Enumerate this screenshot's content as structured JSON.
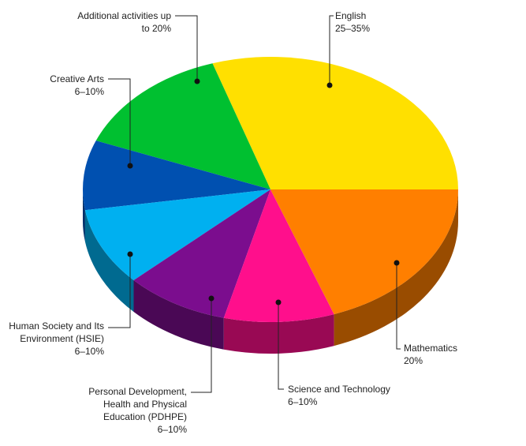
{
  "chart_data": {
    "type": "pie3d",
    "categories": [
      "English",
      "Additional activities up to 20%",
      "Creative Arts",
      "Human Society and Its Environment (HSIE)",
      "Personal Development, Health and Physical Education (PDHPE)",
      "Science and Technology",
      "Mathematics"
    ],
    "allocations": [
      "25–35%",
      "",
      "6–10%",
      "6–10%",
      "6–10%",
      "6–10%",
      "20%"
    ],
    "values": [
      30,
      14,
      8.5,
      9.5,
      9,
      9.5,
      19.5
    ],
    "colors": [
      "#ffe000",
      "#00c030",
      "#0050b0",
      "#00b0f0",
      "#7b0d8e",
      "#ff0f8c",
      "#ff7f00"
    ]
  }
}
